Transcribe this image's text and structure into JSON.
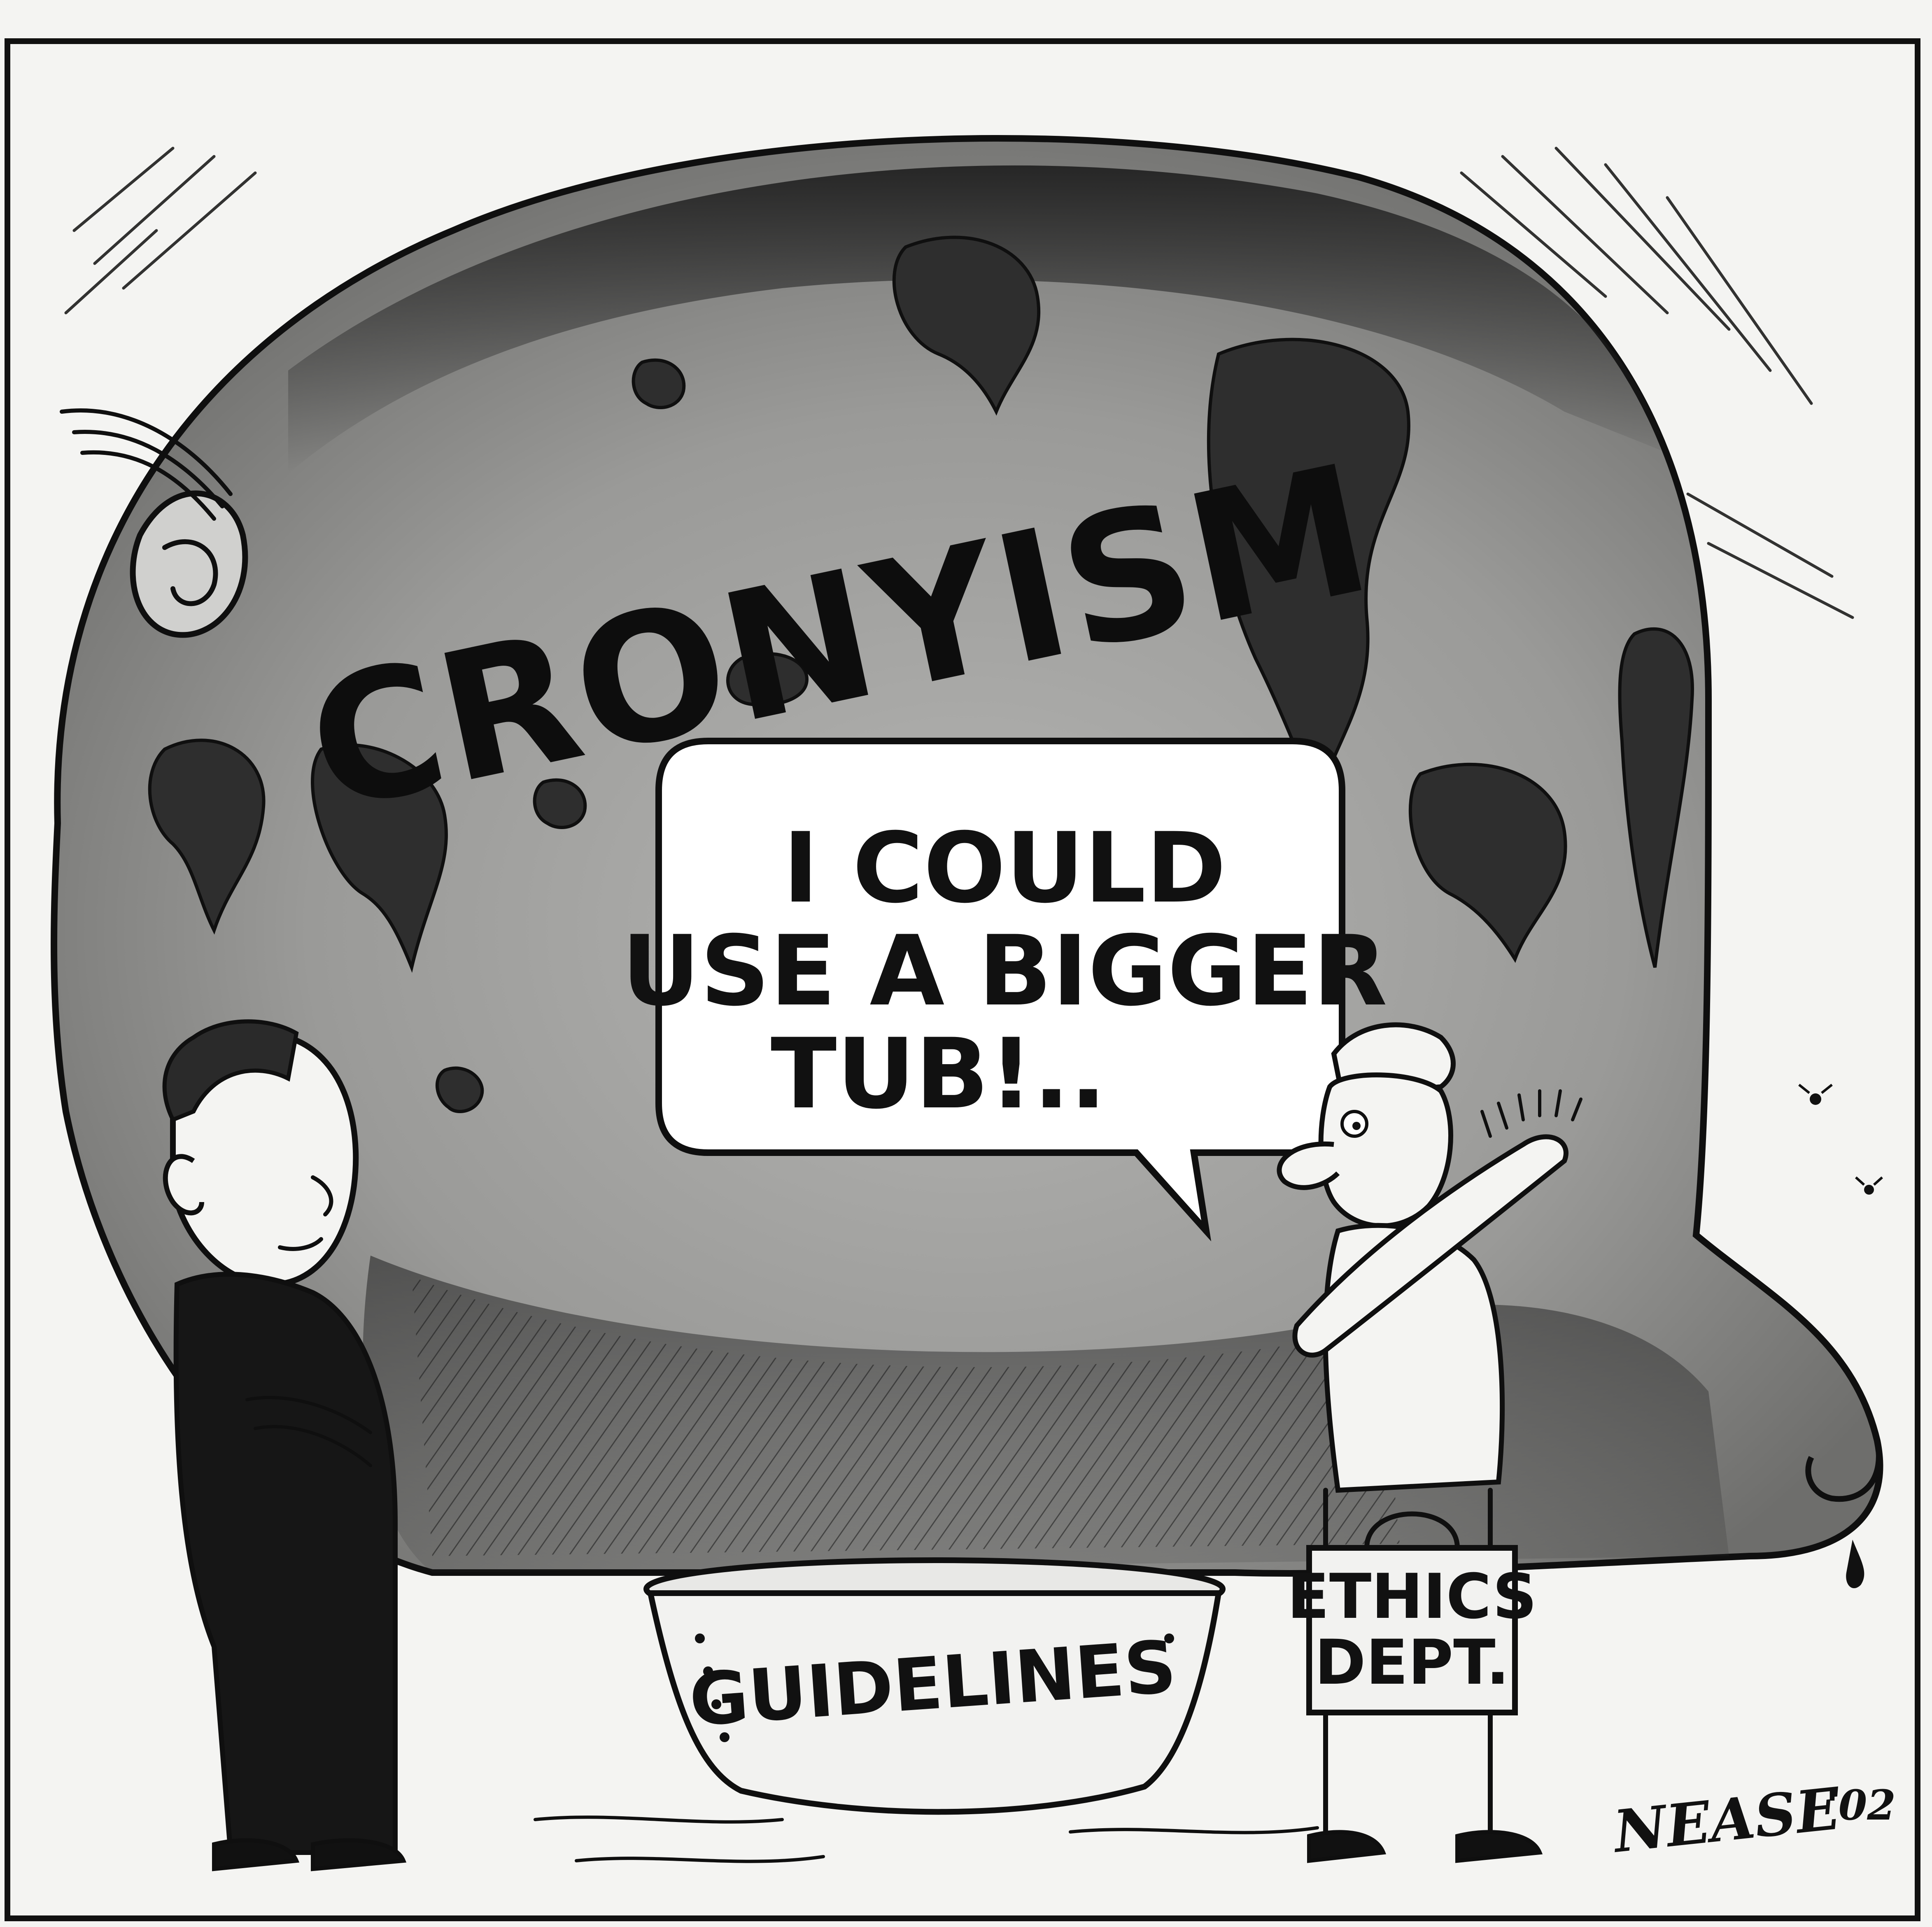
{
  "cartoon": {
    "headline": "CRONYISM",
    "speech": {
      "lines": [
        "I COULD",
        "USE A BIGGER",
        "TUB!.."
      ]
    },
    "tub_label": "GUIDELINES",
    "bag_label": {
      "line1": "ETHICS",
      "line2": "DEPT."
    },
    "signature": "NEASE",
    "year": "'02"
  },
  "colors": {
    "ink": "#0f0f0f",
    "paper": "#f4f4f2",
    "body_gray": "#9a9a9a",
    "spot_dark": "#3a3a3a"
  }
}
